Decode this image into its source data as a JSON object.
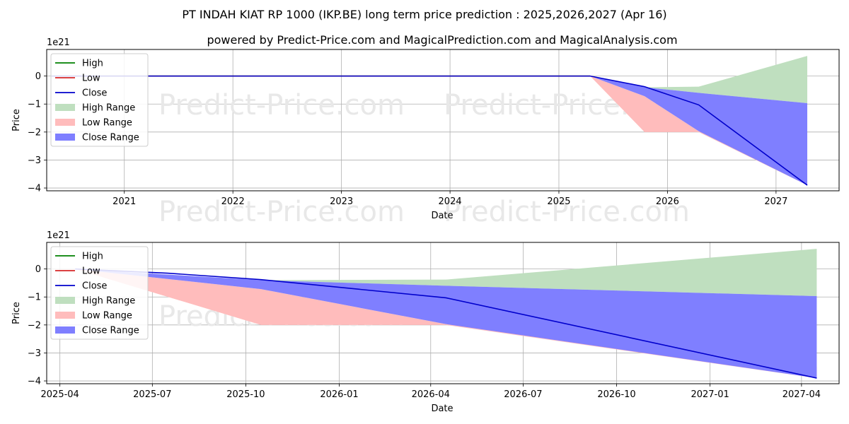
{
  "title": "PT INDAH KIAT RP 1000 (IKP.BE) long term price prediction : 2025,2026,2027 (Apr 16)",
  "subtitle": "powered by Predict-Price.com and MagicalPrediction.com and MagicalAnalysis.com",
  "watermark": "Predict-Price.com",
  "colors": {
    "high": "#008000",
    "low": "#d62728",
    "close": "#0000cc",
    "high_range": "#bfdfbf",
    "low_range": "#ffbcbc",
    "close_range": "#7f7fff"
  },
  "chart_data": [
    {
      "type": "line",
      "xlabel": "Date",
      "ylabel": "Price",
      "y_offset_label": "1e21",
      "xlim": [
        "2020-04-15",
        "2027-08-01"
      ],
      "ylim": [
        -4.1,
        0.95
      ],
      "x_ticks": [
        "2021-01-01",
        "2022-01-01",
        "2023-01-01",
        "2024-01-01",
        "2025-01-01",
        "2026-01-01",
        "2027-01-01"
      ],
      "x_tick_labels": [
        "2021",
        "2022",
        "2023",
        "2024",
        "2025",
        "2026",
        "2027"
      ],
      "y_ticks": [
        0,
        -1,
        -2,
        -3,
        -4
      ],
      "y_tick_labels": [
        "0",
        "−1",
        "−2",
        "−3",
        "−4"
      ],
      "grid": true,
      "legend_position": "top-left",
      "legend": [
        "High",
        "Low",
        "Close",
        "High Range",
        "Low Range",
        "Close Range"
      ],
      "series": [
        {
          "name": "High",
          "x": [
            "2020-05-01",
            "2025-04-16"
          ],
          "values": [
            0,
            0
          ]
        },
        {
          "name": "Low",
          "x": [
            "2020-05-01",
            "2025-04-16"
          ],
          "values": [
            0,
            0
          ]
        },
        {
          "name": "Close",
          "x": [
            "2020-05-01",
            "2025-04-16",
            "2025-10-16",
            "2026-04-16",
            "2027-04-16"
          ],
          "values": [
            0,
            0,
            -0.38,
            -1.03,
            -3.9
          ]
        }
      ],
      "ranges": [
        {
          "name": "High Range",
          "x": [
            "2025-04-16",
            "2025-10-16",
            "2026-04-16",
            "2027-04-16"
          ],
          "upper": [
            0,
            -0.4,
            -0.38,
            0.72
          ],
          "lower": [
            0,
            -0.4,
            -0.6,
            -0.97
          ]
        },
        {
          "name": "Low Range",
          "x": [
            "2025-04-16",
            "2025-10-16",
            "2026-04-16",
            "2027-04-16"
          ],
          "upper": [
            0,
            -0.72,
            -1.97,
            -3.5
          ],
          "lower": [
            0,
            -2.0,
            -2.0,
            -3.9
          ]
        },
        {
          "name": "Close Range",
          "x": [
            "2025-04-16",
            "2025-10-16",
            "2026-04-16",
            "2027-04-16"
          ],
          "upper": [
            0,
            -0.4,
            -0.6,
            -0.97
          ],
          "lower": [
            0,
            -0.72,
            -1.97,
            -3.9
          ]
        }
      ]
    },
    {
      "type": "line",
      "xlabel": "Date",
      "ylabel": "Price",
      "y_offset_label": "1e21",
      "xlim": [
        "2025-03-19",
        "2027-05-08"
      ],
      "ylim": [
        -4.1,
        0.95
      ],
      "x_ticks": [
        "2025-04-01",
        "2025-07-01",
        "2025-10-01",
        "2026-01-01",
        "2026-04-01",
        "2026-07-01",
        "2026-10-01",
        "2027-01-01",
        "2027-04-01"
      ],
      "x_tick_labels": [
        "2025-04",
        "2025-07",
        "2025-10",
        "2026-01",
        "2026-04",
        "2026-07",
        "2026-10",
        "2027-01",
        "2027-04"
      ],
      "y_ticks": [
        0,
        -1,
        -2,
        -3,
        -4
      ],
      "y_tick_labels": [
        "0",
        "−1",
        "−2",
        "−3",
        "−4"
      ],
      "grid": true,
      "legend_position": "top-left",
      "legend": [
        "High",
        "Low",
        "Close",
        "High Range",
        "Low Range",
        "Close Range"
      ],
      "series": [
        {
          "name": "High",
          "x": [],
          "values": []
        },
        {
          "name": "Low",
          "x": [],
          "values": []
        },
        {
          "name": "Close",
          "x": [
            "2025-04-16",
            "2025-07-16",
            "2025-10-16",
            "2026-04-16",
            "2027-04-16"
          ],
          "values": [
            0,
            -0.15,
            -0.38,
            -1.03,
            -3.9
          ]
        }
      ],
      "ranges": [
        {
          "name": "High Range",
          "x": [
            "2025-04-16",
            "2025-10-16",
            "2026-04-16",
            "2027-04-16"
          ],
          "upper": [
            0,
            -0.4,
            -0.38,
            0.72
          ],
          "lower": [
            0,
            -0.4,
            -0.6,
            -0.97
          ]
        },
        {
          "name": "Low Range",
          "x": [
            "2025-04-16",
            "2025-10-16",
            "2026-04-16",
            "2027-04-16"
          ],
          "upper": [
            0,
            -0.72,
            -1.97,
            -3.5
          ],
          "lower": [
            0,
            -2.0,
            -2.0,
            -3.9
          ]
        },
        {
          "name": "Close Range",
          "x": [
            "2025-04-16",
            "2025-10-16",
            "2026-04-16",
            "2027-04-16"
          ],
          "upper": [
            0,
            -0.4,
            -0.6,
            -0.97
          ],
          "lower": [
            0,
            -0.72,
            -1.97,
            -3.9
          ]
        }
      ]
    }
  ]
}
